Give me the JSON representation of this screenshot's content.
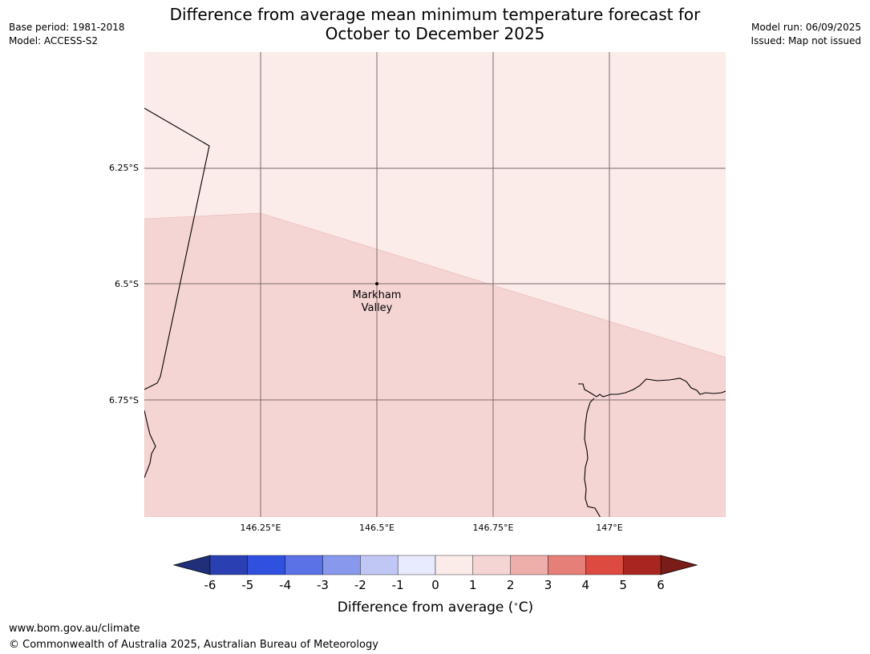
{
  "header": {
    "title_line1": "Difference from average mean minimum temperature forecast for",
    "title_line2": "October to December 2025",
    "base_period": "Base period: 1981-2018",
    "model": "Model: ACCESS-S2",
    "model_run": "Model run: 06/09/2025",
    "issued": "Issued: Map not issued"
  },
  "map": {
    "lat_ticks": [
      "6.25°S",
      "6.5°S",
      "6.75°S"
    ],
    "lon_ticks": [
      "146.25°E",
      "146.5°E",
      "146.75°E",
      "147°E"
    ],
    "place": {
      "name_line1": "Markham",
      "name_line2": "Valley"
    },
    "regions": [
      {
        "category": "1 to 2",
        "color": "#f5d5d4"
      },
      {
        "category": "0 to 1",
        "color": "#fbebe9"
      }
    ],
    "grid_color": "#7a6a6a",
    "coast_color": "#000000"
  },
  "colorbar": {
    "label": "Difference from average ($^\\circ$C)",
    "label_text": "Difference from average (",
    "label_unit": "C)",
    "ticks": [
      "-6",
      "-5",
      "-4",
      "-3",
      "-2",
      "-1",
      "0",
      "1",
      "2",
      "3",
      "4",
      "5",
      "6"
    ],
    "low_extend_color": "#1f2f7a",
    "high_extend_color": "#7a1c18",
    "colors": [
      "#2a3fb2",
      "#3050e0",
      "#5a72e6",
      "#8898ed",
      "#c1c7f5",
      "#e8eafd",
      "#fbebe9",
      "#f5d5d4",
      "#eeaeaa",
      "#e67f78",
      "#dc4a40",
      "#a8261f"
    ]
  },
  "footer": {
    "website": "www.bom.gov.au/climate",
    "copyright": "© Commonwealth of Australia 2025, Australian Bureau of Meteorology"
  }
}
